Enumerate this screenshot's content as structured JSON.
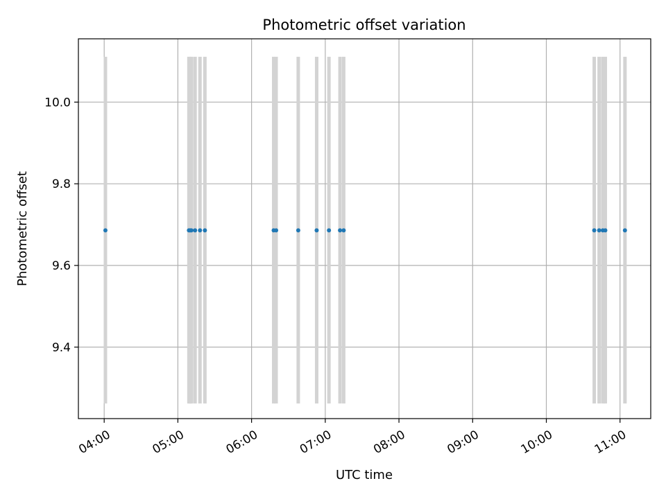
{
  "chart_data": {
    "type": "scatter",
    "title": "Photometric offset variation",
    "xlabel": "UTC time",
    "ylabel": "Photometric offset",
    "x_is_time": true,
    "xlim": [
      "03:39",
      "11:25"
    ],
    "ylim": [
      9.225,
      10.155
    ],
    "xticks": [
      "04:00",
      "05:00",
      "06:00",
      "07:00",
      "08:00",
      "09:00",
      "10:00",
      "11:00"
    ],
    "yticks": [
      9.4,
      9.6,
      9.8,
      10.0
    ],
    "ytick_labels": [
      "9.4",
      "9.6",
      "9.8",
      "10.0"
    ],
    "grid": true,
    "legend": "none",
    "colors": {
      "points": "#1f77b4",
      "bands": "#d3d3d3",
      "grid": "#b0b0b0"
    },
    "band_range": [
      9.262,
      10.111
    ],
    "series": [
      {
        "points": [
          {
            "x": "04:01",
            "y": 9.686
          },
          {
            "x": "05:09",
            "y": 9.686
          },
          {
            "x": "05:10",
            "y": 9.686
          },
          {
            "x": "05:11",
            "y": 9.686
          },
          {
            "x": "05:14",
            "y": 9.686
          },
          {
            "x": "05:18",
            "y": 9.686
          },
          {
            "x": "05:22",
            "y": 9.686
          },
          {
            "x": "06:18",
            "y": 9.686
          },
          {
            "x": "06:20",
            "y": 9.686
          },
          {
            "x": "06:38",
            "y": 9.686
          },
          {
            "x": "06:53",
            "y": 9.686
          },
          {
            "x": "07:03",
            "y": 9.686
          },
          {
            "x": "07:12",
            "y": 9.686
          },
          {
            "x": "07:15",
            "y": 9.686
          },
          {
            "x": "10:39",
            "y": 9.686
          },
          {
            "x": "10:43",
            "y": 9.686
          },
          {
            "x": "10:46",
            "y": 9.686
          },
          {
            "x": "10:48",
            "y": 9.686
          },
          {
            "x": "11:04",
            "y": 9.686
          }
        ]
      }
    ]
  }
}
